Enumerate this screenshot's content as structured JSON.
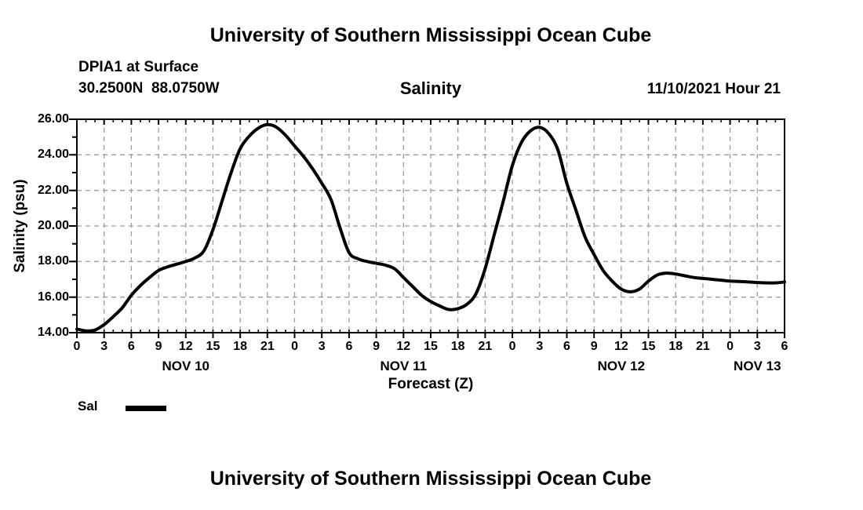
{
  "page": {
    "title_top": "University of Southern Mississippi Ocean Cube",
    "title_bottom": "University of Southern Mississippi Ocean Cube"
  },
  "header": {
    "station": "DPIA1 at Surface",
    "coordinates": "30.2500N  88.0750W",
    "plot_title": "Salinity",
    "run_time": "11/10/2021 Hour 21"
  },
  "chart_data": {
    "type": "line",
    "title": "Salinity",
    "xlabel": "Forecast (Z)",
    "ylabel": "Salinity (psu)",
    "ylim": [
      14,
      26
    ],
    "y_major_step": 2,
    "y_tick_labels": [
      "14.00",
      "16.00",
      "18.00",
      "20.00",
      "22.00",
      "24.00",
      "26.00"
    ],
    "x_hours_range": [
      0,
      78
    ],
    "x_major_step_hours": 3,
    "x_tick_labels": [
      "0",
      "3",
      "6",
      "9",
      "12",
      "15",
      "18",
      "21",
      "0",
      "3",
      "6",
      "9",
      "12",
      "15",
      "18",
      "21",
      "0",
      "3",
      "6",
      "9",
      "12",
      "15",
      "18",
      "21",
      "0",
      "3",
      "6"
    ],
    "day_labels": [
      {
        "text": "NOV 10",
        "hour": 12
      },
      {
        "text": "NOV 11",
        "hour": 36
      },
      {
        "text": "NOV 12",
        "hour": 60
      },
      {
        "text": "NOV 13",
        "hour": 75
      }
    ],
    "grid": true,
    "grid_color": "#9e9e9e",
    "line_color": "#000000",
    "legend_position": "bottom-left",
    "legend": [
      {
        "label": "Sal",
        "color": "#000000"
      }
    ],
    "series": [
      {
        "name": "Sal",
        "x_hours": [
          0,
          1,
          2,
          3,
          4,
          5,
          6,
          7,
          8,
          9,
          10,
          11,
          12,
          13,
          14,
          15,
          16,
          17,
          18,
          19,
          20,
          21,
          22,
          23,
          24,
          25,
          26,
          27,
          28,
          29,
          30,
          31,
          32,
          33,
          34,
          35,
          36,
          37,
          38,
          39,
          40,
          41,
          42,
          43,
          44,
          45,
          46,
          47,
          48,
          49,
          50,
          51,
          52,
          53,
          54,
          55,
          56,
          57,
          58,
          59,
          60,
          61,
          62,
          63,
          64,
          65,
          66,
          67,
          68,
          69,
          70,
          71,
          72,
          73,
          74,
          75,
          76,
          77,
          78
        ],
        "values": [
          14.2,
          14.1,
          14.15,
          14.45,
          14.9,
          15.4,
          16.1,
          16.65,
          17.1,
          17.5,
          17.7,
          17.85,
          18.0,
          18.2,
          18.6,
          19.8,
          21.4,
          23.0,
          24.35,
          25.05,
          25.5,
          25.7,
          25.55,
          25.1,
          24.5,
          23.9,
          23.2,
          22.4,
          21.5,
          19.9,
          18.5,
          18.15,
          18.0,
          17.9,
          17.8,
          17.6,
          17.1,
          16.6,
          16.1,
          15.75,
          15.5,
          15.3,
          15.35,
          15.6,
          16.2,
          17.6,
          19.5,
          21.4,
          23.4,
          24.7,
          25.35,
          25.55,
          25.2,
          24.3,
          22.4,
          20.9,
          19.4,
          18.4,
          17.5,
          16.9,
          16.45,
          16.3,
          16.45,
          16.9,
          17.25,
          17.35,
          17.3,
          17.2,
          17.1,
          17.05,
          17.0,
          16.95,
          16.9,
          16.88,
          16.85,
          16.82,
          16.8,
          16.8,
          16.85
        ]
      }
    ]
  }
}
